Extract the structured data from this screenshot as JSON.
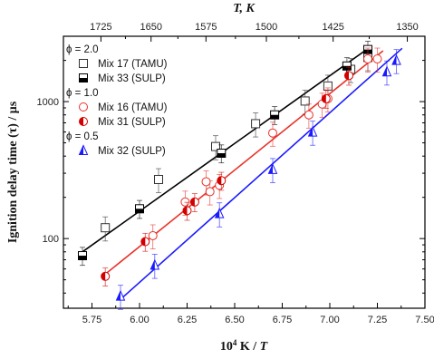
{
  "chart_data": {
    "type": "scatter",
    "title": "",
    "x_axis": {
      "label": "10⁴ K / T",
      "range": [
        5.6,
        7.5
      ],
      "ticks": [
        5.75,
        6.0,
        6.25,
        6.5,
        6.75,
        7.0,
        7.25,
        7.5
      ],
      "tick_labels": [
        "5.75",
        "6.00",
        "6.25",
        "6.50",
        "6.75",
        "7.00",
        "7.25",
        "7.50"
      ]
    },
    "top_axis": {
      "label": "T, K",
      "ticks": [
        1725,
        1650,
        1575,
        1500,
        1425,
        1350
      ],
      "tick_labels": [
        "1725",
        "1650",
        "1575",
        "1500",
        "1425",
        "1350"
      ]
    },
    "y_axis": {
      "label": "Ignition delay time (τ) / μs",
      "scale": "log",
      "range": [
        31,
        3000
      ],
      "ticks": [
        100,
        1000
      ],
      "tick_labels": [
        "100",
        "1000"
      ]
    },
    "legend_groups": [
      {
        "header": "ϕ = 2.0",
        "entries": [
          {
            "label": "Mix 17 (TAMU)",
            "marker": "square-open",
            "color": "#333333"
          },
          {
            "label": "Mix 33 (SULP)",
            "marker": "square-half",
            "color": "#000000"
          }
        ]
      },
      {
        "header": "ϕ = 1.0",
        "entries": [
          {
            "label": "Mix 16 (TAMU)",
            "marker": "circle-open",
            "color": "#e8322a"
          },
          {
            "label": "Mix 31 (SULP)",
            "marker": "circle-half",
            "color": "#d40000"
          }
        ]
      },
      {
        "header": "ϕ = 0.5",
        "entries": [
          {
            "label": "Mix 32 (SULP)",
            "marker": "triangle-half",
            "color": "#1a1aff"
          }
        ]
      }
    ],
    "series": [
      {
        "name": "Mix 17 (TAMU)",
        "marker": "square-open",
        "color": "#333333",
        "points": [
          {
            "x": 5.82,
            "y": 120,
            "err": 0.2
          },
          {
            "x": 6.1,
            "y": 270,
            "err": 0.2
          },
          {
            "x": 6.4,
            "y": 470,
            "err": 0.2
          },
          {
            "x": 6.61,
            "y": 690,
            "err": 0.2
          },
          {
            "x": 6.87,
            "y": 1010,
            "err": 0.2
          },
          {
            "x": 6.99,
            "y": 1300,
            "err": 0.2
          },
          {
            "x": 7.11,
            "y": 1720,
            "err": 0.2
          },
          {
            "x": 7.2,
            "y": 2100,
            "err": 0.2
          }
        ]
      },
      {
        "name": "Mix 33 (SULP)",
        "marker": "square-half",
        "color": "#000000",
        "points": [
          {
            "x": 5.7,
            "y": 75,
            "err": 0.15
          },
          {
            "x": 6.0,
            "y": 165,
            "err": 0.15
          },
          {
            "x": 6.43,
            "y": 420,
            "err": 0.15
          },
          {
            "x": 6.71,
            "y": 800,
            "err": 0.15
          },
          {
            "x": 7.09,
            "y": 1820,
            "err": 0.15
          },
          {
            "x": 7.2,
            "y": 2400,
            "err": 0.15
          }
        ]
      },
      {
        "name": "Mix 16 (TAMU)",
        "marker": "circle-open",
        "color": "#e8322a",
        "points": [
          {
            "x": 6.07,
            "y": 105,
            "err": 0.2
          },
          {
            "x": 6.24,
            "y": 185,
            "err": 0.2
          },
          {
            "x": 6.37,
            "y": 220,
            "err": 0.2
          },
          {
            "x": 6.42,
            "y": 245,
            "err": 0.2
          },
          {
            "x": 6.35,
            "y": 260,
            "err": 0.2
          },
          {
            "x": 6.7,
            "y": 590,
            "err": 0.2
          },
          {
            "x": 6.89,
            "y": 800,
            "err": 0.2
          },
          {
            "x": 6.96,
            "y": 960,
            "err": 0.2
          },
          {
            "x": 6.99,
            "y": 1050,
            "err": 0.2
          },
          {
            "x": 7.2,
            "y": 2050,
            "err": 0.2
          },
          {
            "x": 7.25,
            "y": 2050,
            "err": 0.2
          }
        ]
      },
      {
        "name": "Mix 31 (SULP)",
        "marker": "circle-half",
        "color": "#d40000",
        "points": [
          {
            "x": 5.82,
            "y": 53,
            "err": 0.15
          },
          {
            "x": 6.03,
            "y": 95,
            "err": 0.15
          },
          {
            "x": 6.25,
            "y": 160,
            "err": 0.15
          },
          {
            "x": 6.29,
            "y": 185,
            "err": 0.15
          },
          {
            "x": 6.43,
            "y": 265,
            "err": 0.15
          },
          {
            "x": 6.98,
            "y": 1050,
            "err": 0.15
          },
          {
            "x": 7.1,
            "y": 1550,
            "err": 0.15
          }
        ]
      },
      {
        "name": "Mix 32 (SULP)",
        "marker": "triangle-half",
        "color": "#1a1aff",
        "points": [
          {
            "x": 5.9,
            "y": 38,
            "err": 0.2
          },
          {
            "x": 6.08,
            "y": 64,
            "err": 0.2
          },
          {
            "x": 6.42,
            "y": 152,
            "err": 0.2
          },
          {
            "x": 6.7,
            "y": 320,
            "err": 0.2
          },
          {
            "x": 6.91,
            "y": 600,
            "err": 0.2
          },
          {
            "x": 7.3,
            "y": 1650,
            "err": 0.2
          },
          {
            "x": 7.35,
            "y": 2000,
            "err": 0.2
          }
        ]
      }
    ],
    "fit_lines": [
      {
        "color": "#000000",
        "x": [
          5.7,
          7.22
        ],
        "y": [
          80,
          2550
        ]
      },
      {
        "color": "#e8322a",
        "x": [
          5.82,
          7.28
        ],
        "y": [
          55,
          2350
        ]
      },
      {
        "color": "#1a1aff",
        "x": [
          5.9,
          7.38
        ],
        "y": [
          36,
          2450
        ]
      }
    ]
  }
}
